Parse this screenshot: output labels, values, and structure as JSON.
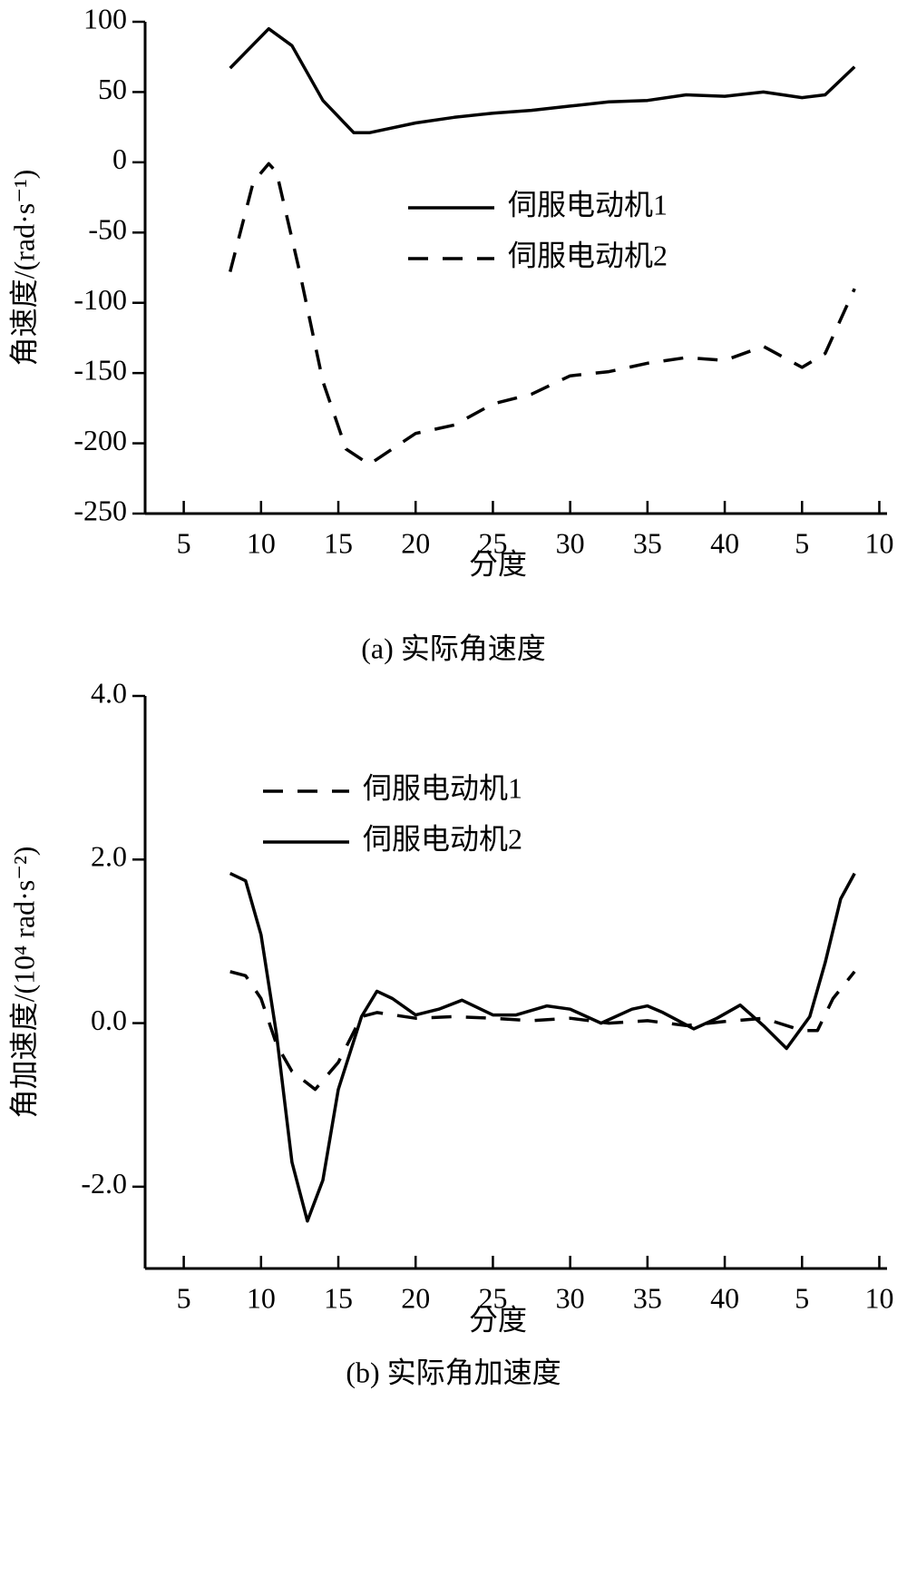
{
  "chart_data": [
    {
      "type": "line",
      "caption": "(a) 实际角速度",
      "xlabel": "分度",
      "ylabel": "角速度/(rad·s⁻¹)",
      "xlim": [
        2.5,
        50.5
      ],
      "xticks": [
        5,
        10,
        15,
        20,
        25,
        30,
        35,
        40,
        {
          "value": 45,
          "label": "5"
        },
        {
          "value": 50,
          "label": "10"
        }
      ],
      "ylim": [
        -250,
        100
      ],
      "yticks": [
        -250,
        -200,
        -150,
        -100,
        -50,
        0,
        50,
        100
      ],
      "legend": "center",
      "series": [
        {
          "name": "伺服电动机1",
          "color": "#000000",
          "linestyle": "solid",
          "x": [
            8,
            10.5,
            12,
            14,
            16,
            17,
            20,
            22.5,
            25,
            27.5,
            30,
            32.5,
            35,
            37.5,
            40,
            42.5,
            45,
            46.5,
            48.4
          ],
          "values": [
            67,
            95,
            83,
            44,
            21,
            21,
            28,
            32,
            35,
            37,
            40,
            43,
            44,
            48,
            47,
            50,
            46,
            48,
            68
          ]
        },
        {
          "name": "伺服电动机2",
          "color": "#000000",
          "linestyle": "dashed",
          "x": [
            8,
            9.5,
            10.5,
            11,
            12.5,
            14,
            15.5,
            17,
            20,
            22.5,
            25,
            27.5,
            30,
            32.5,
            35,
            37.5,
            40,
            42.5,
            45,
            46.5,
            48.4
          ],
          "values": [
            -78,
            -14,
            -1,
            -7,
            -78,
            -156,
            -204,
            -215,
            -193,
            -187,
            -172,
            -165,
            -152,
            -149,
            -143,
            -139,
            -141,
            -131,
            -146,
            -136,
            -90
          ]
        }
      ]
    },
    {
      "type": "line",
      "caption": "(b) 实际角加速度",
      "xlabel": "分度",
      "ylabel": "角加速度/(10⁴ rad·s⁻²)",
      "xlim": [
        2.5,
        50.5
      ],
      "xticks": [
        5,
        10,
        15,
        20,
        25,
        30,
        35,
        40,
        {
          "value": 45,
          "label": "5"
        },
        {
          "value": 50,
          "label": "10"
        }
      ],
      "ylim": [
        -3,
        4
      ],
      "yticks": [
        {
          "value": -2,
          "label": "-2.0"
        },
        {
          "value": 0,
          "label": "0.0"
        },
        {
          "value": 2,
          "label": "2.0"
        },
        {
          "value": 4,
          "label": "4.0"
        }
      ],
      "legend": "upper left",
      "series": [
        {
          "name": "伺服电动机1",
          "color": "#000000",
          "linestyle": "dashed",
          "x": [
            8,
            9,
            10,
            11,
            12,
            13.5,
            15,
            16.5,
            17.5,
            20,
            22.5,
            25,
            27.5,
            30,
            32.5,
            35,
            37.5,
            40,
            42.5,
            45,
            46,
            47,
            48.4
          ],
          "values": [
            0.63,
            0.58,
            0.3,
            -0.26,
            -0.59,
            -0.81,
            -0.48,
            0.08,
            0.13,
            0.06,
            0.08,
            0.06,
            0.03,
            0.06,
            0,
            0.03,
            -0.03,
            0.02,
            0.06,
            -0.09,
            -0.09,
            0.3,
            0.63
          ]
        },
        {
          "name": "伺服电动机2",
          "color": "#000000",
          "linestyle": "solid",
          "x": [
            8,
            9,
            10,
            11,
            12,
            13,
            14,
            15,
            16.5,
            17.5,
            18.5,
            20,
            21.5,
            23,
            25,
            26.5,
            28.5,
            30,
            32,
            34,
            35,
            36,
            38,
            39.5,
            41,
            42.5,
            44,
            45.5,
            46.5,
            47.5,
            48.4
          ],
          "values": [
            1.83,
            1.74,
            1.08,
            -0.14,
            -1.7,
            -2.42,
            -1.92,
            -0.81,
            0.08,
            0.39,
            0.3,
            0.1,
            0.17,
            0.28,
            0.1,
            0.1,
            0.21,
            0.17,
            0,
            0.17,
            0.21,
            0.13,
            -0.07,
            0.06,
            0.22,
            -0.03,
            -0.31,
            0.08,
            0.74,
            1.52,
            1.83
          ]
        }
      ]
    }
  ]
}
